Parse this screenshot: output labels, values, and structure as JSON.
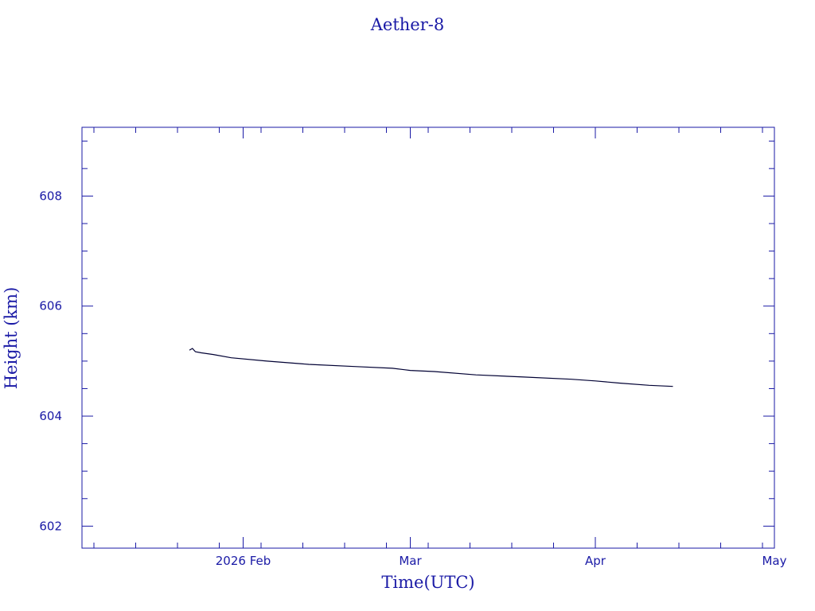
{
  "chart_data": {
    "type": "line",
    "title": "Aether-8",
    "xlabel": "Time(UTC)",
    "ylabel": "Height (km)",
    "xlim": [
      "2026-01-05",
      "2026-05-01"
    ],
    "ylim": [
      601.6,
      609.25
    ],
    "x_ticks": [
      {
        "date": "2026-02-01",
        "label": "2026 Feb"
      },
      {
        "date": "2026-03-01",
        "label": "Mar"
      },
      {
        "date": "2026-04-01",
        "label": "Apr"
      },
      {
        "date": "2026-05-01",
        "label": "May"
      }
    ],
    "y_ticks": [
      602,
      604,
      606,
      608
    ],
    "grid": false,
    "colors": {
      "axes": "#1a1aa6",
      "line": "#000033",
      "text": "#1a1aa6"
    },
    "series": [
      {
        "x": [
          "2026-01-23",
          "2026-01-23T12:00",
          "2026-01-24",
          "2026-01-25",
          "2026-01-27",
          "2026-01-30",
          "2026-02-05",
          "2026-02-12",
          "2026-02-20",
          "2026-02-26",
          "2026-03-01",
          "2026-03-05",
          "2026-03-12",
          "2026-03-20",
          "2026-03-28",
          "2026-04-01",
          "2026-04-05",
          "2026-04-10",
          "2026-04-14"
        ],
        "y": [
          605.2,
          605.23,
          605.17,
          605.15,
          605.12,
          605.06,
          605.0,
          604.94,
          604.9,
          604.87,
          604.83,
          604.81,
          604.75,
          604.71,
          604.67,
          604.64,
          604.6,
          604.56,
          604.54
        ]
      }
    ]
  }
}
